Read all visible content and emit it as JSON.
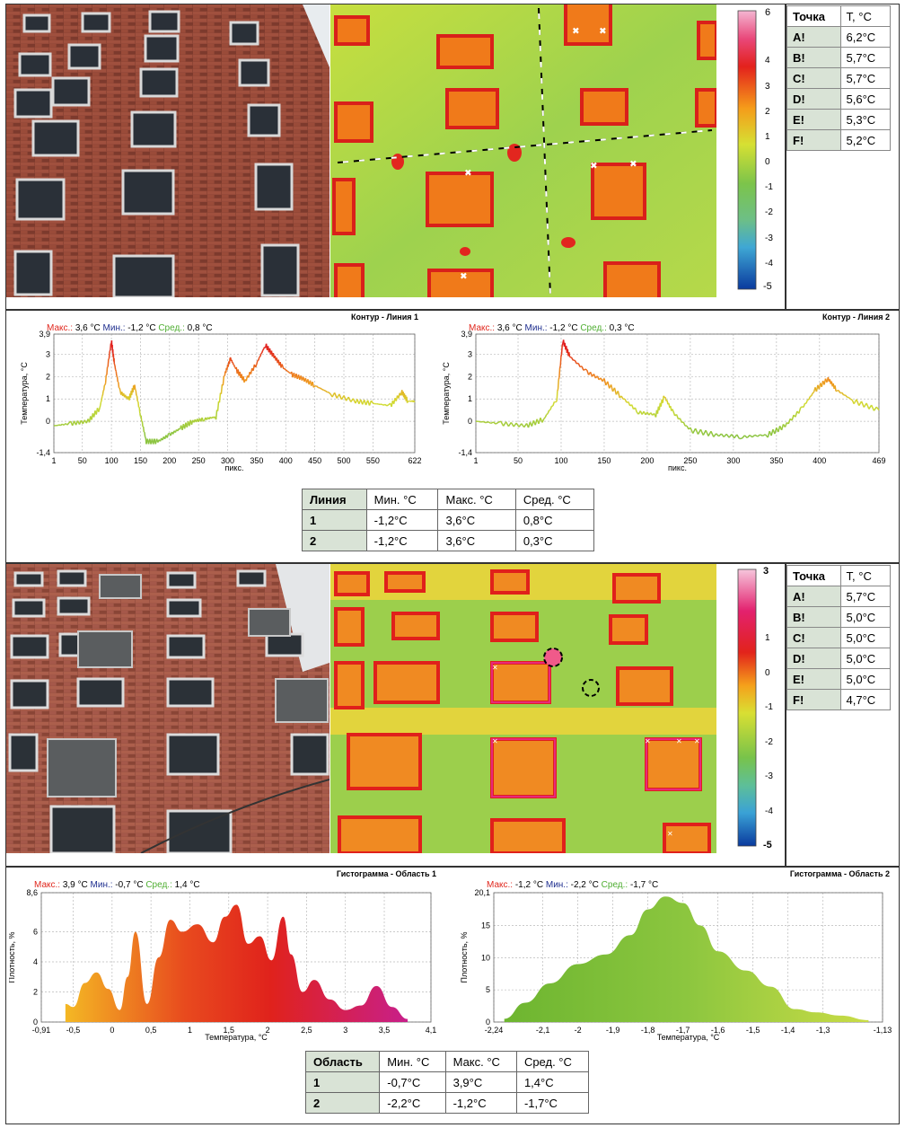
{
  "section1": {
    "scale": {
      "max_label": "6",
      "ticks": [
        "4",
        "3",
        "2",
        "1",
        "0",
        "-1",
        "-2",
        "-3",
        "-4"
      ],
      "min_label": "-5"
    },
    "points": {
      "header": [
        "Точка",
        "T, °C"
      ],
      "rows": [
        [
          "A!",
          "6,2°C"
        ],
        [
          "B!",
          "5,7°C"
        ],
        [
          "C!",
          "5,7°C"
        ],
        [
          "D!",
          "5,6°C"
        ],
        [
          "E!",
          "5,3°C"
        ],
        [
          "F!",
          "5,2°C"
        ]
      ]
    },
    "summary": {
      "header": [
        "Линия",
        "Мин. °C",
        "Макс. °C",
        "Сред. °C"
      ],
      "rows": [
        [
          "1",
          "-1,2°C",
          "3,6°C",
          "0,8°C"
        ],
        [
          "2",
          "-1,2°C",
          "3,6°C",
          "0,3°C"
        ]
      ]
    }
  },
  "section2": {
    "scale": {
      "max_label": "3",
      "ticks": [
        "1",
        "0",
        "-1",
        "-2",
        "-3",
        "-4"
      ],
      "min_label": "-5"
    },
    "points": {
      "header": [
        "Точка",
        "T, °C"
      ],
      "rows": [
        [
          "A!",
          "5,7°C"
        ],
        [
          "B!",
          "5,0°C"
        ],
        [
          "C!",
          "5,0°C"
        ],
        [
          "D!",
          "5,0°C"
        ],
        [
          "E!",
          "5,0°C"
        ],
        [
          "F!",
          "4,7°C"
        ]
      ]
    },
    "summary": {
      "header": [
        "Область",
        "Мин. °C",
        "Макс. °C",
        "Сред. °C"
      ],
      "rows": [
        [
          "1",
          "-0,7°C",
          "3,9°C",
          "1,4°C"
        ],
        [
          "2",
          "-2,2°C",
          "-1,2°C",
          "-1,7°C"
        ]
      ]
    }
  },
  "chart_data": [
    {
      "type": "line",
      "title": "Контур - Линия 1",
      "stats": {
        "max_label": "Макс.:",
        "max": "3,6 °C",
        "min_label": "Мин.:",
        "min": "-1,2 °C",
        "avg_label": "Сред.:",
        "avg": "0,8 °C"
      },
      "xlabel": "пикс.",
      "ylabel": "Температура, °C",
      "xlim": [
        1,
        622
      ],
      "ylim": [
        -1.4,
        3.9
      ],
      "xticks": [
        "1",
        "50",
        "100",
        "150",
        "200",
        "250",
        "300",
        "350",
        "400",
        "450",
        "500",
        "550",
        "622"
      ],
      "xtick_values": [
        1,
        50,
        100,
        150,
        200,
        250,
        300,
        350,
        400,
        450,
        500,
        550,
        622
      ],
      "yticks": [
        "3,9",
        "3",
        "2",
        "1",
        "0",
        "-1,4"
      ],
      "ytick_values": [
        3.9,
        3,
        2,
        1,
        0,
        -1.4
      ],
      "grid": true,
      "x": [
        1,
        30,
        60,
        80,
        90,
        100,
        105,
        115,
        130,
        140,
        150,
        160,
        180,
        200,
        220,
        240,
        260,
        280,
        295,
        305,
        315,
        330,
        350,
        365,
        380,
        395,
        410,
        430,
        450,
        480,
        520,
        550,
        580,
        600,
        610,
        622
      ],
      "y": [
        -0.2,
        -0.1,
        0,
        0.6,
        1.8,
        3.6,
        2.6,
        1.3,
        1.0,
        1.6,
        0.3,
        -0.9,
        -0.9,
        -0.6,
        -0.3,
        0,
        0.1,
        0.2,
        2.1,
        2.8,
        2.3,
        1.8,
        2.6,
        3.4,
        2.9,
        2.4,
        2.1,
        1.9,
        1.6,
        1.2,
        0.9,
        0.8,
        0.7,
        1.3,
        0.9,
        0.9
      ]
    },
    {
      "type": "line",
      "title": "Контур - Линия 2",
      "stats": {
        "max_label": "Макс.:",
        "max": "3,6 °C",
        "min_label": "Мин.:",
        "min": "-1,2 °C",
        "avg_label": "Сред.:",
        "avg": "0,3 °C"
      },
      "xlabel": "пикс.",
      "ylabel": "Температура, °C",
      "xlim": [
        1,
        469
      ],
      "ylim": [
        -1.4,
        3.9
      ],
      "xticks": [
        "1",
        "50",
        "100",
        "150",
        "200",
        "250",
        "300",
        "350",
        "400",
        "469"
      ],
      "xtick_values": [
        1,
        50,
        100,
        150,
        200,
        250,
        300,
        350,
        400,
        469
      ],
      "yticks": [
        "3,9",
        "3",
        "2",
        "1",
        "0",
        "-1,4"
      ],
      "ytick_values": [
        3.9,
        3,
        2,
        1,
        0,
        -1.4
      ],
      "grid": true,
      "x": [
        1,
        30,
        60,
        80,
        95,
        102,
        110,
        130,
        150,
        170,
        190,
        210,
        220,
        230,
        250,
        280,
        310,
        340,
        360,
        380,
        395,
        410,
        420,
        440,
        469
      ],
      "y": [
        0,
        -0.1,
        -0.2,
        0.1,
        1.0,
        3.6,
        2.9,
        2.2,
        1.8,
        1.1,
        0.4,
        0.3,
        1.1,
        0.4,
        -0.4,
        -0.6,
        -0.7,
        -0.6,
        -0.2,
        0.6,
        1.4,
        1.9,
        1.4,
        0.9,
        0.5
      ]
    },
    {
      "type": "area",
      "title": "Гистограмма - Область 1",
      "stats": {
        "max_label": "Макс.:",
        "max": "3,9 °C",
        "min_label": "Мин.:",
        "min": "-0,7 °C",
        "avg_label": "Сред.:",
        "avg": "1,4 °C"
      },
      "xlabel": "Температура, °C",
      "ylabel": "Плотность, %",
      "xlim": [
        -0.91,
        4.1
      ],
      "ylim": [
        0,
        8.6
      ],
      "xticks": [
        "-0,91",
        "-0,5",
        "0",
        "0,5",
        "1",
        "1,5",
        "2",
        "2,5",
        "3",
        "3,5",
        "4,1"
      ],
      "xtick_values": [
        -0.91,
        -0.5,
        0,
        0.5,
        1,
        1.5,
        2,
        2.5,
        3,
        3.5,
        4.1
      ],
      "yticks": [
        "8,6",
        "6",
        "4",
        "2",
        "0"
      ],
      "ytick_values": [
        8.6,
        6,
        4,
        2,
        0
      ],
      "grid": true,
      "x": [
        -0.6,
        -0.5,
        -0.35,
        -0.2,
        -0.05,
        0.1,
        0.2,
        0.3,
        0.45,
        0.6,
        0.75,
        0.9,
        1.1,
        1.3,
        1.45,
        1.6,
        1.75,
        1.9,
        2.05,
        2.2,
        2.3,
        2.45,
        2.6,
        2.8,
        3.0,
        3.2,
        3.4,
        3.6,
        3.8
      ],
      "y": [
        1.2,
        1.0,
        2.6,
        3.3,
        2.2,
        0.8,
        3.0,
        6.0,
        1.2,
        4.3,
        6.8,
        6.0,
        6.5,
        5.3,
        7.0,
        7.8,
        5.2,
        5.7,
        4.1,
        7.0,
        4.5,
        2.0,
        2.8,
        1.5,
        0.8,
        1.1,
        2.4,
        1.0,
        0.2
      ]
    },
    {
      "type": "area",
      "title": "Гистограмма - Область 2",
      "stats": {
        "max_label": "Макс.:",
        "max": "-1,2 °C",
        "min_label": "Мин.:",
        "min": "-2,2 °C",
        "avg_label": "Сред.:",
        "avg": "-1,7 °C"
      },
      "xlabel": "Температура, °C",
      "ylabel": "Плотность, %",
      "xlim": [
        -2.24,
        -1.13
      ],
      "ylim": [
        0,
        20.1
      ],
      "xticks": [
        "-2,24",
        "-2,1",
        "-2",
        "-1,9",
        "-1,8",
        "-1,7",
        "-1,6",
        "-1,5",
        "-1,4",
        "-1,3",
        "-1,13"
      ],
      "xtick_values": [
        -2.24,
        -2.1,
        -2,
        -1.9,
        -1.8,
        -1.7,
        -1.6,
        -1.5,
        -1.4,
        -1.3,
        -1.13
      ],
      "yticks": [
        "20,1",
        "15",
        "10",
        "5",
        "0"
      ],
      "ytick_values": [
        20.1,
        15,
        10,
        5,
        0
      ],
      "grid": true,
      "x": [
        -2.21,
        -2.15,
        -2.08,
        -2.0,
        -1.92,
        -1.85,
        -1.8,
        -1.75,
        -1.7,
        -1.65,
        -1.6,
        -1.52,
        -1.45,
        -1.38,
        -1.32,
        -1.25,
        -1.17
      ],
      "y": [
        0.5,
        3.0,
        6.0,
        9.0,
        10.5,
        13.5,
        17.5,
        19.5,
        18.5,
        15.0,
        11.0,
        8.0,
        5.5,
        2.0,
        1.5,
        1.0,
        0.3
      ]
    }
  ]
}
